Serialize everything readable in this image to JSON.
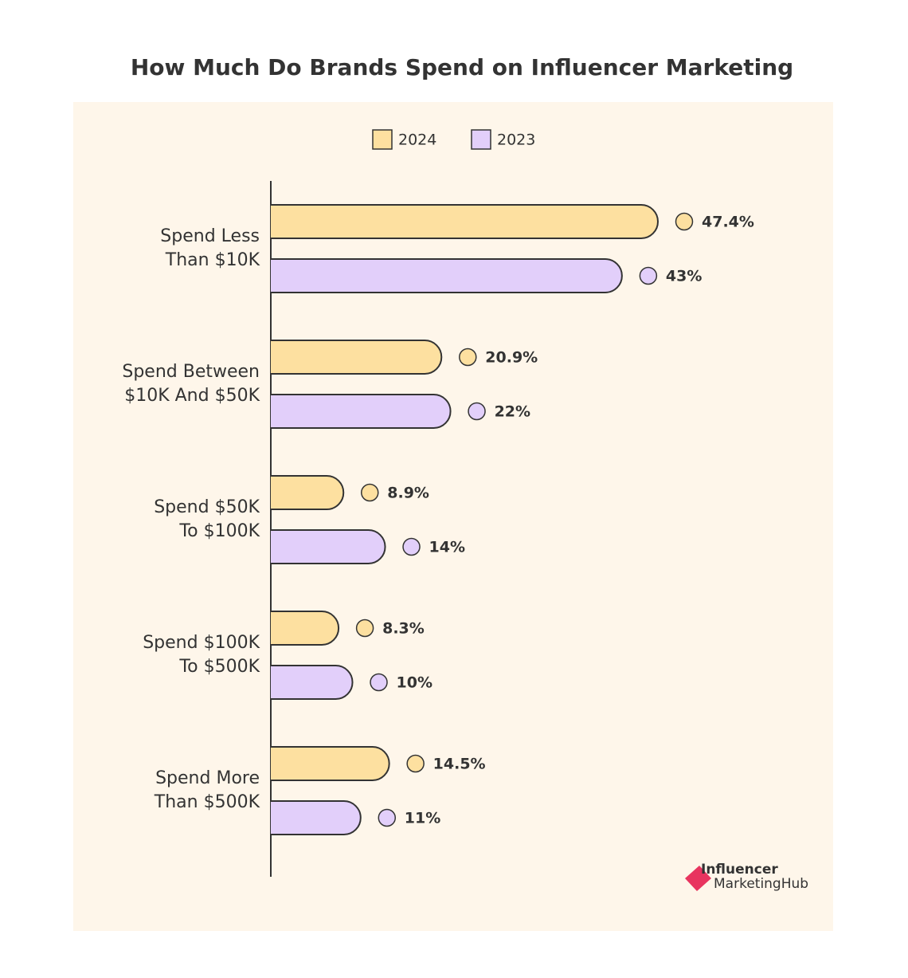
{
  "chart_data": {
    "type": "bar",
    "orientation": "horizontal",
    "title": "How Much Do Brands Spend on Influencer Marketing",
    "categories": [
      "Spend Less Than $10K",
      "Spend Between $10K And $50K",
      "Spend $50K To $100K",
      "Spend $100K To $500K",
      "Spend More Than $500K"
    ],
    "series": [
      {
        "name": "2024",
        "color": "#fde0a0",
        "values": [
          47.4,
          20.9,
          8.9,
          8.3,
          14.5
        ],
        "value_labels": [
          "47.4%",
          "20.9%",
          "8.9%",
          "8.3%",
          "14.5%"
        ]
      },
      {
        "name": "2023",
        "color": "#e2cffa",
        "values": [
          43,
          22,
          14,
          10,
          11
        ],
        "value_labels": [
          "43%",
          "22%",
          "14%",
          "10%",
          "11%"
        ]
      }
    ],
    "legend": "top",
    "logo": {
      "line1": "Influencer",
      "line2": "MarketingHub"
    }
  }
}
